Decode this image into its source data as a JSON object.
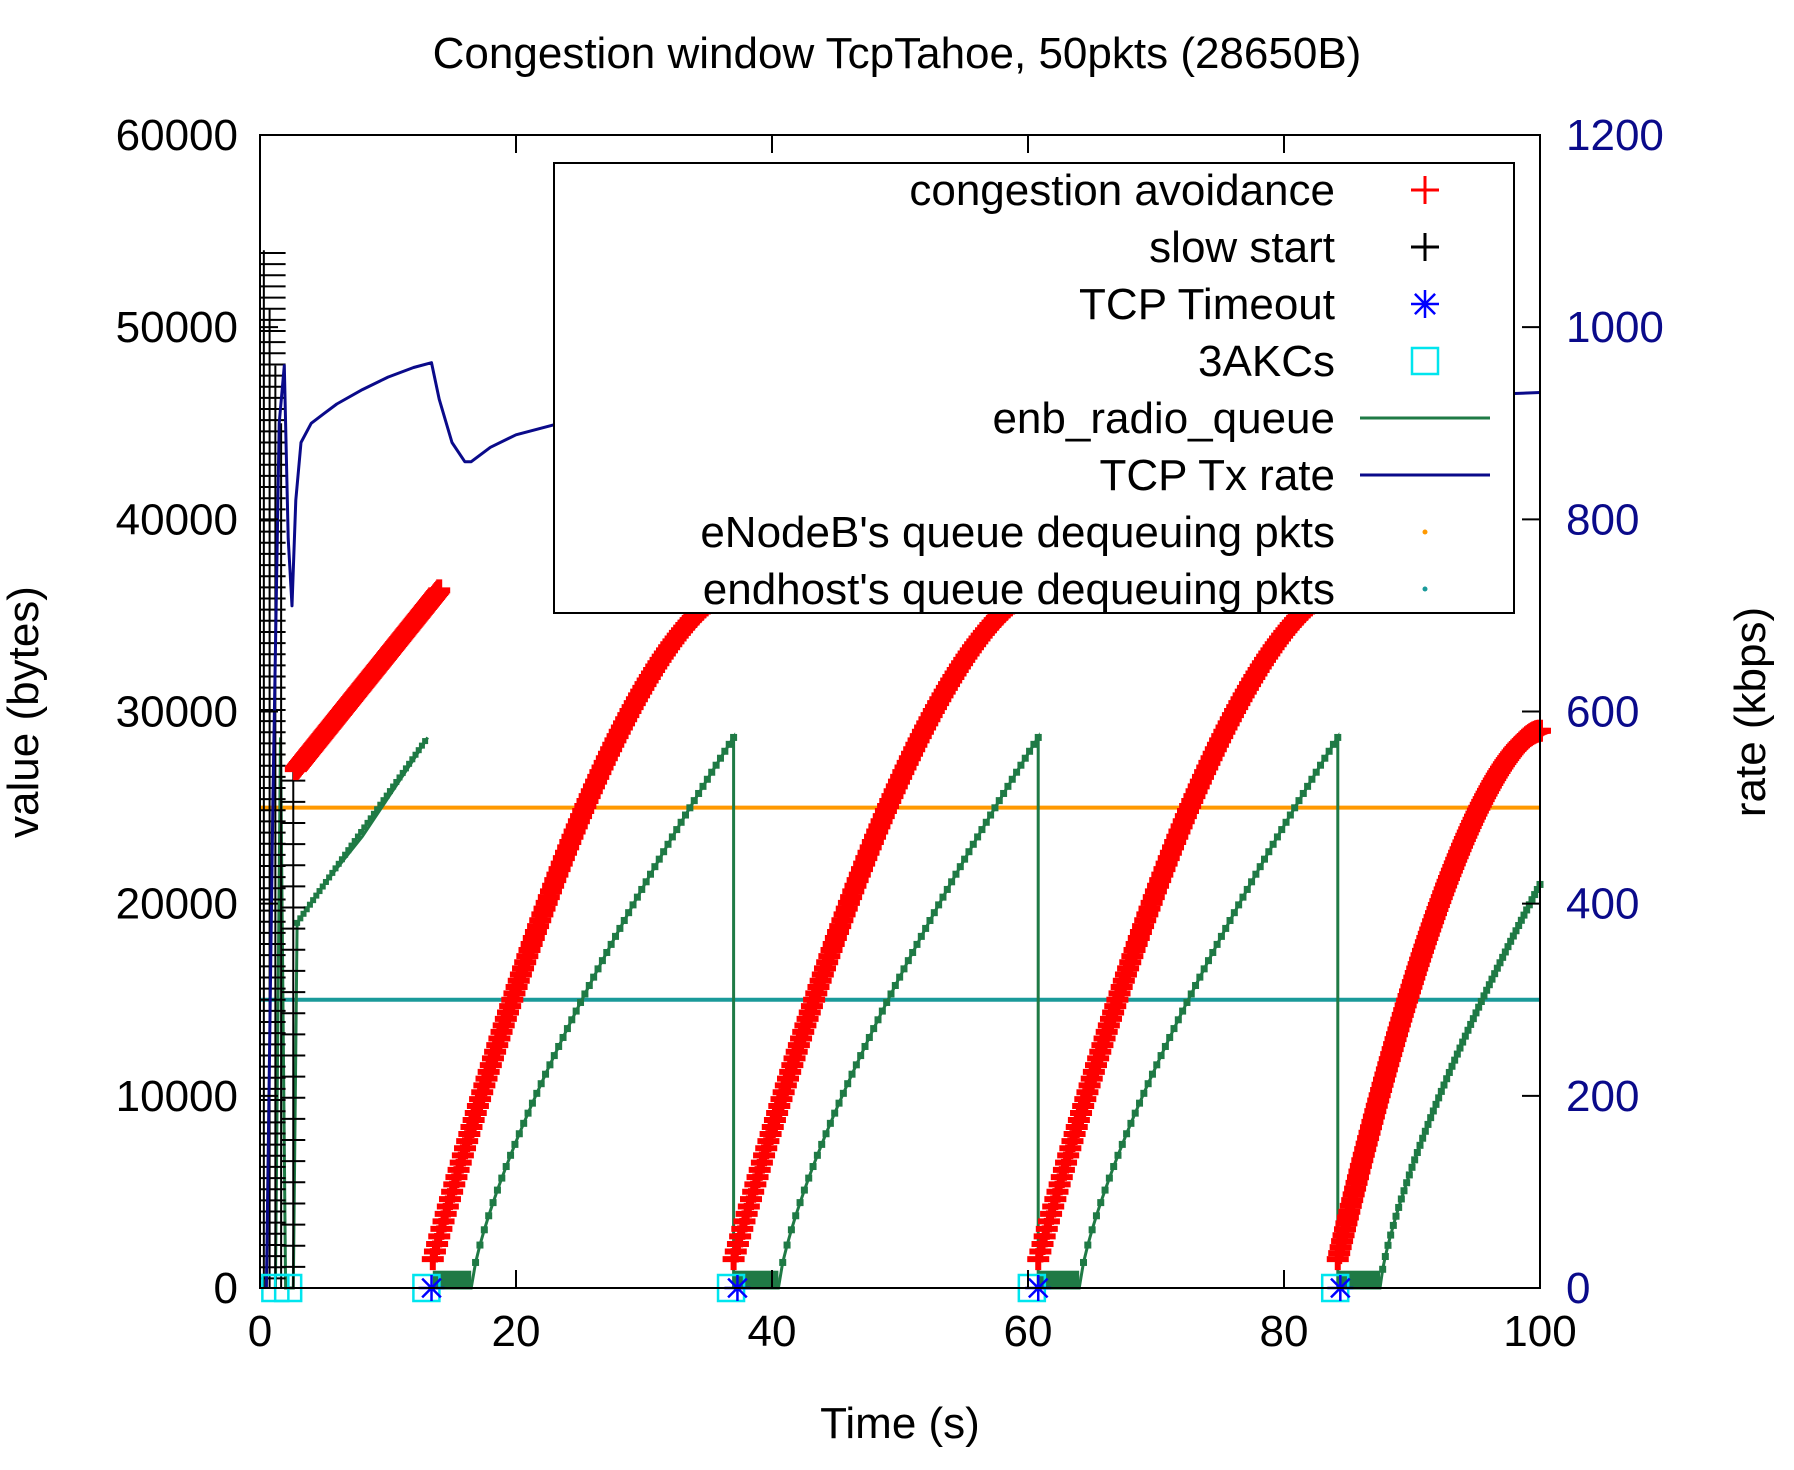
{
  "chart_data": {
    "type": "line",
    "title": "Congestion window TcpTahoe, 50pkts (28650B)",
    "xlabel": "Time (s)",
    "ylabel": "value (bytes)",
    "y2label": "rate (kbps)",
    "xlim": [
      0,
      100
    ],
    "ylim": [
      0,
      60000
    ],
    "y2lim": [
      0,
      1200
    ],
    "xticks": [
      0,
      20,
      40,
      60,
      80,
      100
    ],
    "yticks": [
      0,
      10000,
      20000,
      30000,
      40000,
      50000,
      60000
    ],
    "y2ticks": [
      0,
      200,
      400,
      600,
      800,
      1000,
      1200
    ],
    "legend_position": "top-right",
    "grid": false,
    "colors": {
      "congestion_avoidance": "#ff0000",
      "slow_start": "#000000",
      "tcp_timeout": "#0000ff",
      "three_ackcs": "#00e5ee",
      "enb_radio_queue": "#1f7a45",
      "tcp_tx_rate": "#0a0a8a",
      "enodeb_dequeue": "#ff9900",
      "endhost_dequeue": "#1a9a9a",
      "right_axis": "#0a0a8a"
    },
    "series": [
      {
        "name": "congestion avoidance",
        "marker": "plus",
        "cycles": [
          {
            "x_start": 2.8,
            "x_end": 14.0,
            "y_start": 27000,
            "y_end": 36300,
            "shape": "linear"
          },
          {
            "x_start": 13.5,
            "x_end": 37.0,
            "y_start": 1500,
            "y_end": 36300,
            "shape": "concave"
          },
          {
            "x_start": 37.0,
            "x_end": 60.8,
            "y_start": 1500,
            "y_end": 36300,
            "shape": "concave"
          },
          {
            "x_start": 60.8,
            "x_end": 84.2,
            "y_start": 1500,
            "y_end": 36300,
            "shape": "concave"
          },
          {
            "x_start": 84.2,
            "x_end": 100.0,
            "y_start": 1500,
            "y_end": 29000,
            "shape": "concave"
          }
        ]
      },
      {
        "name": "slow start",
        "marker": "plus",
        "x_range": [
          0.3,
          3.2
        ],
        "y_top": 54000,
        "spike_x": 2.6,
        "spike_top": 27000
      },
      {
        "name": "TCP Timeout",
        "marker": "asterisk",
        "points": [
          [
            13.4,
            0
          ],
          [
            37.3,
            0
          ],
          [
            60.8,
            0
          ],
          [
            84.4,
            0
          ]
        ]
      },
      {
        "name": "3AKCs",
        "marker": "square",
        "points": [
          [
            1.2,
            0
          ],
          [
            2.2,
            0
          ],
          [
            13.0,
            0
          ],
          [
            36.8,
            0
          ],
          [
            60.3,
            0
          ],
          [
            84.0,
            0
          ]
        ]
      },
      {
        "name": "enb_radio_queue",
        "cycles": [
          {
            "x_start": 13.5,
            "x_end": 37.0,
            "ramp_start": 16.5,
            "y_max": 28650
          },
          {
            "x_start": 37.0,
            "x_end": 60.8,
            "ramp_start": 40.5,
            "y_max": 28650
          },
          {
            "x_start": 60.8,
            "x_end": 84.2,
            "ramp_start": 64.0,
            "y_max": 28650
          },
          {
            "x_start": 84.2,
            "x_end": 100.0,
            "ramp_start": 87.5,
            "y_max": 21000
          }
        ],
        "startup": [
          [
            1.2,
            0
          ],
          [
            1.6,
            28650
          ],
          [
            2.0,
            0
          ],
          [
            2.6,
            0
          ],
          [
            2.9,
            19000
          ],
          [
            5,
            21000
          ],
          [
            8,
            23500
          ],
          [
            12,
            27500
          ],
          [
            13.1,
            28650
          ]
        ]
      },
      {
        "name": "TCP Tx rate",
        "axis": "right",
        "x": [
          0.5,
          1.0,
          1.5,
          1.9,
          2.2,
          2.5,
          2.8,
          3.2,
          4,
          5,
          6,
          8,
          10,
          12,
          13.4,
          14.0,
          15.0,
          16.0,
          16.5,
          18,
          20,
          24,
          28,
          32,
          36,
          37.3,
          38.0,
          39.0,
          40.0,
          44,
          48,
          52,
          56,
          60,
          60.8,
          61.5,
          62.5,
          63.0,
          66,
          70,
          74,
          78,
          82,
          84.4,
          85.0,
          86.0,
          87.0,
          90,
          94,
          98,
          100
        ],
        "values": [
          0,
          500,
          900,
          960,
          780,
          710,
          820,
          880,
          900,
          910,
          920,
          935,
          948,
          958,
          963,
          925,
          880,
          860,
          860,
          875,
          888,
          902,
          915,
          925,
          935,
          943,
          925,
          912,
          905,
          915,
          923,
          930,
          935,
          940,
          942,
          930,
          918,
          915,
          920,
          925,
          930,
          932,
          935,
          938,
          930,
          922,
          920,
          924,
          928,
          931,
          932
        ]
      },
      {
        "name": "eNodeB's queue dequeuing pkts",
        "marker": "dot",
        "y": 25000
      },
      {
        "name": "endhost's queue dequeuing pkts",
        "marker": "dot",
        "y": 15000
      }
    ]
  }
}
